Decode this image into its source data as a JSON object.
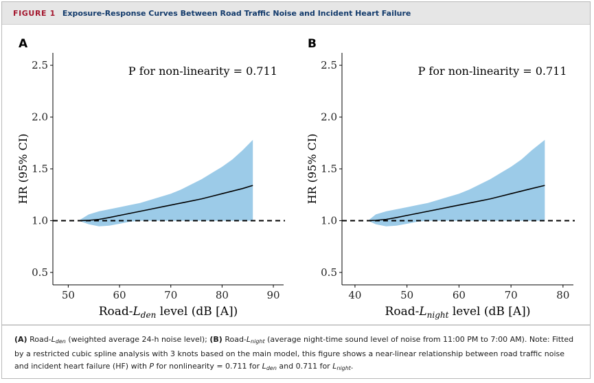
{
  "figure": {
    "label": "FIGURE 1",
    "title": "Exposure-Response Curves Between Road Traffic Noise and Incident Heart Failure"
  },
  "colors": {
    "band": "#9ccbe8",
    "line": "#000000",
    "reference": "#000000",
    "label": "#a4172e",
    "title": "#123a6b"
  },
  "chart_data": [
    {
      "panel": "A",
      "type": "line",
      "annotation": "P for non-linearity = 0.711",
      "ylabel": "HR (95% CI)",
      "xlabel": {
        "prefix": "Road-",
        "var": "L",
        "sub": "den",
        "suffix": " level (dB [A])"
      },
      "xlim": [
        47,
        92
      ],
      "ylim": [
        0.38,
        2.62
      ],
      "xticks": [
        50,
        60,
        70,
        80,
        90
      ],
      "yticks": [
        0.5,
        1.0,
        1.5,
        2.0,
        2.5
      ],
      "ytick_labels": [
        "0.5",
        "1.0",
        "1.5",
        "2.0",
        "2.5"
      ],
      "reference_line": 1.0,
      "series": [
        {
          "name": "HR",
          "x": [
            52.0,
            54,
            56,
            58,
            60,
            62,
            64,
            66,
            68,
            70,
            72,
            74,
            76,
            78,
            80,
            82,
            84,
            86
          ],
          "y": [
            1.0,
            1.003,
            1.012,
            1.03,
            1.05,
            1.07,
            1.09,
            1.11,
            1.13,
            1.15,
            1.17,
            1.19,
            1.21,
            1.235,
            1.26,
            1.285,
            1.31,
            1.34
          ],
          "lower": [
            1.0,
            0.965,
            0.945,
            0.952,
            0.97,
            0.99,
            1.0,
            1.0,
            1.0,
            1.0,
            1.0,
            1.0,
            1.0,
            1.0,
            1.0,
            1.0,
            1.0,
            1.0
          ],
          "upper": [
            1.0,
            1.06,
            1.09,
            1.11,
            1.13,
            1.15,
            1.17,
            1.2,
            1.23,
            1.26,
            1.3,
            1.35,
            1.4,
            1.46,
            1.52,
            1.59,
            1.68,
            1.78
          ]
        }
      ]
    },
    {
      "panel": "B",
      "type": "line",
      "annotation": "P for non-linearity = 0.711",
      "ylabel": "HR (95% CI)",
      "xlabel": {
        "prefix": "Road-",
        "var": "L",
        "sub": "night",
        "suffix": " level (dB [A])"
      },
      "xlim": [
        37.5,
        82
      ],
      "ylim": [
        0.38,
        2.62
      ],
      "xticks": [
        40,
        50,
        60,
        70,
        80
      ],
      "yticks": [
        0.5,
        1.0,
        1.5,
        2.0,
        2.5
      ],
      "ytick_labels": [
        "0.5",
        "1.0",
        "1.5",
        "2.0",
        "2.5"
      ],
      "reference_line": 1.0,
      "series": [
        {
          "name": "HR",
          "x": [
            42.5,
            44,
            46,
            48,
            50,
            52,
            54,
            56,
            58,
            60,
            62,
            64,
            66,
            68,
            70,
            72,
            74,
            76.5
          ],
          "y": [
            1.0,
            1.003,
            1.012,
            1.03,
            1.05,
            1.07,
            1.09,
            1.11,
            1.13,
            1.15,
            1.17,
            1.19,
            1.21,
            1.235,
            1.26,
            1.285,
            1.31,
            1.34
          ],
          "lower": [
            1.0,
            0.965,
            0.945,
            0.952,
            0.97,
            0.99,
            1.0,
            1.0,
            1.0,
            1.0,
            1.0,
            1.0,
            1.0,
            1.0,
            1.0,
            1.0,
            1.0,
            1.0
          ],
          "upper": [
            1.0,
            1.06,
            1.09,
            1.11,
            1.13,
            1.15,
            1.17,
            1.2,
            1.23,
            1.26,
            1.3,
            1.35,
            1.4,
            1.46,
            1.52,
            1.59,
            1.68,
            1.78
          ]
        }
      ]
    }
  ],
  "caption": {
    "a_label": "(A)",
    "a_prefix": "Road-",
    "a_var": "L",
    "a_sub": "den",
    "a_text": " (weighted average 24-h noise level); ",
    "b_label": "(B)",
    "b_prefix": "Road-",
    "b_var": "L",
    "b_sub": "night",
    "b_text": " (average night-time sound level of noise from 11:00 PM to 7:00 AM). Note: Fitted by a restricted cubic spline analysis with 3 knots based on the main model, this figure shows a near-linear relationship between road traffic noise and incident heart failure (HF) with ",
    "p_var": "P",
    "p_text": " for nonlinearity = 0.711 for ",
    "l1_var": "L",
    "l1_sub": "den",
    "and_text": " and 0.711 for ",
    "l2_var": "L",
    "l2_sub": "night",
    "end": "."
  }
}
